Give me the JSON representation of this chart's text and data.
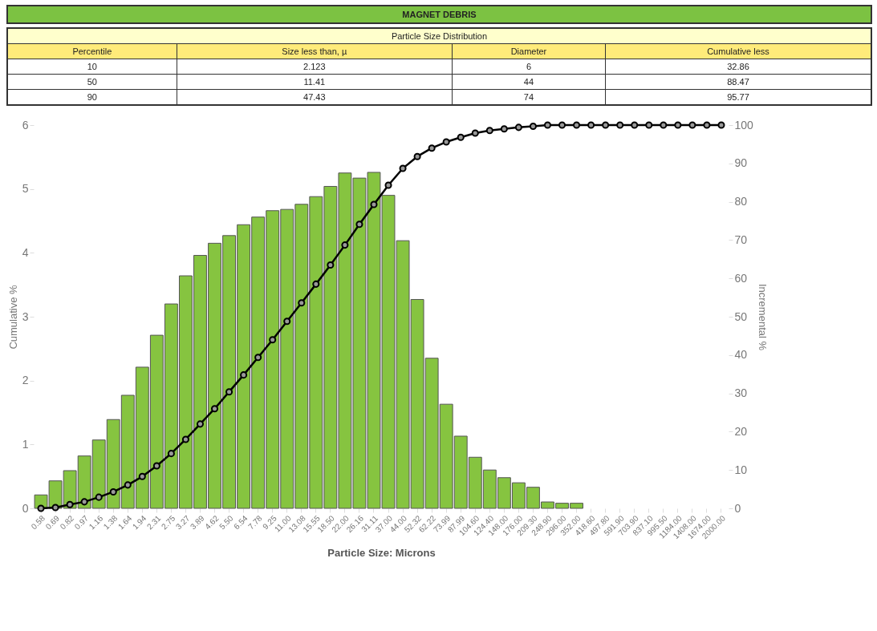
{
  "chart_data": [
    {
      "type": "other",
      "title": "MAGNET DEBRIS",
      "subtitle": "Particle Size Distribution",
      "annotations": [
        "Percentile",
        "Size less than, µ",
        "Diameter",
        "Cumulative less",
        "10",
        "2.123",
        "6",
        "32.86",
        "50",
        "11.41",
        "44",
        "88.47",
        "90",
        "47.43",
        "74",
        "95.77"
      ]
    },
    {
      "type": "bar",
      "xlabel": "Particle Size: Microns",
      "ylabel": "Cumulative %",
      "y2label": "Incremental %",
      "categories": [
        "0.58",
        "0.69",
        "0.82",
        "0.97",
        "1.16",
        "1.38",
        "1.64",
        "1.94",
        "2.31",
        "2.75",
        "3.27",
        "3.89",
        "4.62",
        "5.50",
        "6.54",
        "7.78",
        "9.25",
        "11.00",
        "13.08",
        "15.55",
        "18.50",
        "22.00",
        "26.16",
        "31.11",
        "37.00",
        "44.00",
        "52.32",
        "62.22",
        "73.99",
        "87.99",
        "104.60",
        "124.40",
        "148.00",
        "176.00",
        "209.30",
        "248.90",
        "296.00",
        "352.00",
        "418.60",
        "497.80",
        "591.90",
        "703.90",
        "837.10",
        "995.50",
        "1184.00",
        "1408.00",
        "1674.00",
        "2000.00"
      ],
      "series": [
        {
          "type": "bar",
          "color": "#86c440",
          "values": [
            0.21,
            0.43,
            0.59,
            0.82,
            1.07,
            1.39,
            1.77,
            2.21,
            2.71,
            3.2,
            3.64,
            3.96,
            4.15,
            4.27,
            4.44,
            4.56,
            4.66,
            4.68,
            4.76,
            4.88,
            5.04,
            5.25,
            5.17,
            5.26,
            4.9,
            4.19,
            3.27,
            2.35,
            1.63,
            1.13,
            0.8,
            0.6,
            0.48,
            0.4,
            0.33,
            0.1,
            0.08,
            0.08,
            null,
            null,
            null,
            null,
            null,
            null,
            null,
            null,
            null,
            null
          ]
        },
        {
          "type": "line",
          "axis": "y2",
          "color": "#000000",
          "values": [
            0,
            0.2,
            1.0,
            1.7,
            2.9,
            4.3,
            6.1,
            8.3,
            11.1,
            14.3,
            18.0,
            22.0,
            26.0,
            30.4,
            34.8,
            39.4,
            44.0,
            48.8,
            53.6,
            58.5,
            63.5,
            68.7,
            74.1,
            79.3,
            84.3,
            88.7,
            91.8,
            94.0,
            95.6,
            96.8,
            97.9,
            98.6,
            99.0,
            99.4,
            99.7,
            100,
            100,
            100,
            100,
            100,
            100,
            100,
            100,
            100,
            100,
            100,
            100,
            100
          ]
        }
      ],
      "ylim": [
        0,
        6
      ],
      "yticks": [
        0,
        1,
        2,
        3,
        4,
        5,
        6
      ],
      "y2lim": [
        0,
        100
      ],
      "y2ticks": [
        0,
        10,
        20,
        30,
        40,
        50,
        60,
        70,
        80,
        90,
        100
      ],
      "marker": "circle",
      "line_style": "solid"
    }
  ]
}
